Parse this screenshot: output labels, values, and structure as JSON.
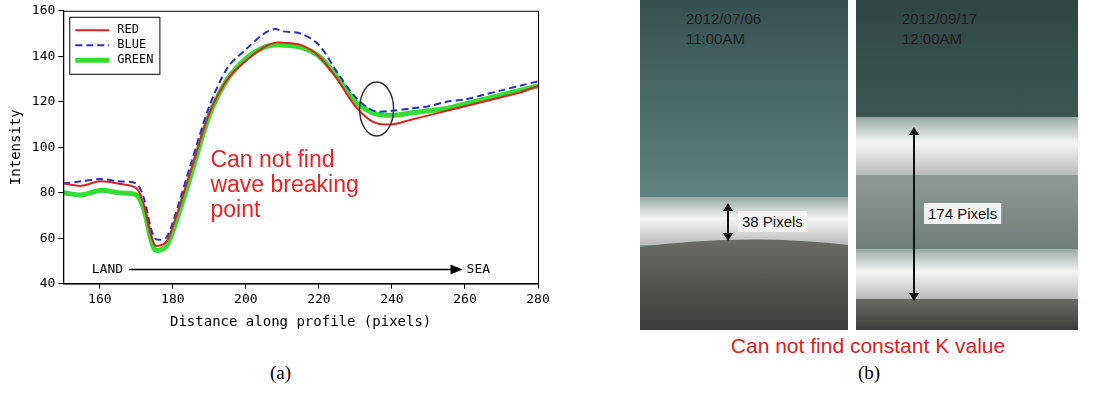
{
  "chart_data": {
    "type": "line",
    "x_label": "Distance along profile (pixels)",
    "y_label": "Intensity",
    "x": [
      150,
      155,
      160,
      165,
      170,
      172,
      175,
      178,
      180,
      185,
      190,
      195,
      200,
      205,
      208,
      210,
      215,
      220,
      225,
      230,
      235,
      240,
      245,
      250,
      255,
      260,
      265,
      270,
      275,
      280
    ],
    "series": [
      {
        "name": "RED",
        "color": "#e02020",
        "line_style": "solid",
        "values": [
          84,
          83,
          85,
          84,
          82,
          75,
          57,
          58,
          65,
          90,
          115,
          130,
          138,
          144,
          146,
          146,
          145,
          140,
          130,
          118,
          111,
          110,
          112,
          114,
          116,
          118,
          120,
          122,
          124,
          127
        ]
      },
      {
        "name": "BLUE",
        "color": "#2233cc",
        "line_style": "dashed",
        "values": [
          84,
          85,
          86,
          85,
          84,
          78,
          60,
          60,
          67,
          93,
          118,
          135,
          143,
          150,
          152,
          151,
          150,
          145,
          133,
          122,
          116,
          116,
          117,
          118,
          120,
          121,
          123,
          125,
          127,
          129
        ]
      },
      {
        "name": "GREEN",
        "color": "#33dd33",
        "line_style": "solid",
        "values": [
          80,
          79,
          81,
          80,
          79,
          73,
          55,
          56,
          63,
          88,
          114,
          130,
          139,
          144,
          145,
          145,
          144,
          140,
          131,
          120,
          115,
          114,
          115,
          116,
          117,
          119,
          121,
          123,
          125,
          127
        ]
      }
    ],
    "marker": "none",
    "xlim": [
      150,
      280
    ],
    "xticks": [
      160,
      180,
      200,
      220,
      240,
      260,
      280
    ],
    "ylim": [
      40,
      160
    ],
    "yticks": [
      40,
      60,
      80,
      100,
      120,
      140,
      160
    ],
    "grid": false,
    "legend": "upper left",
    "annotation": [
      "Can not find",
      "wave breaking",
      "point"
    ],
    "direction_arrow": {
      "from": "LAND",
      "to": "SEA"
    },
    "panel_label": "(a)"
  },
  "panel_b": {
    "photos": [
      {
        "date": "2012/07/06",
        "time": "11:00AM",
        "pixels": 38,
        "label": "38 Pixels"
      },
      {
        "date": "2012/09/17",
        "time": "12:00AM",
        "pixels": 174,
        "label": "174 Pixels"
      }
    ],
    "caption": "Can not find constant K value",
    "panel_label": "(b)"
  }
}
